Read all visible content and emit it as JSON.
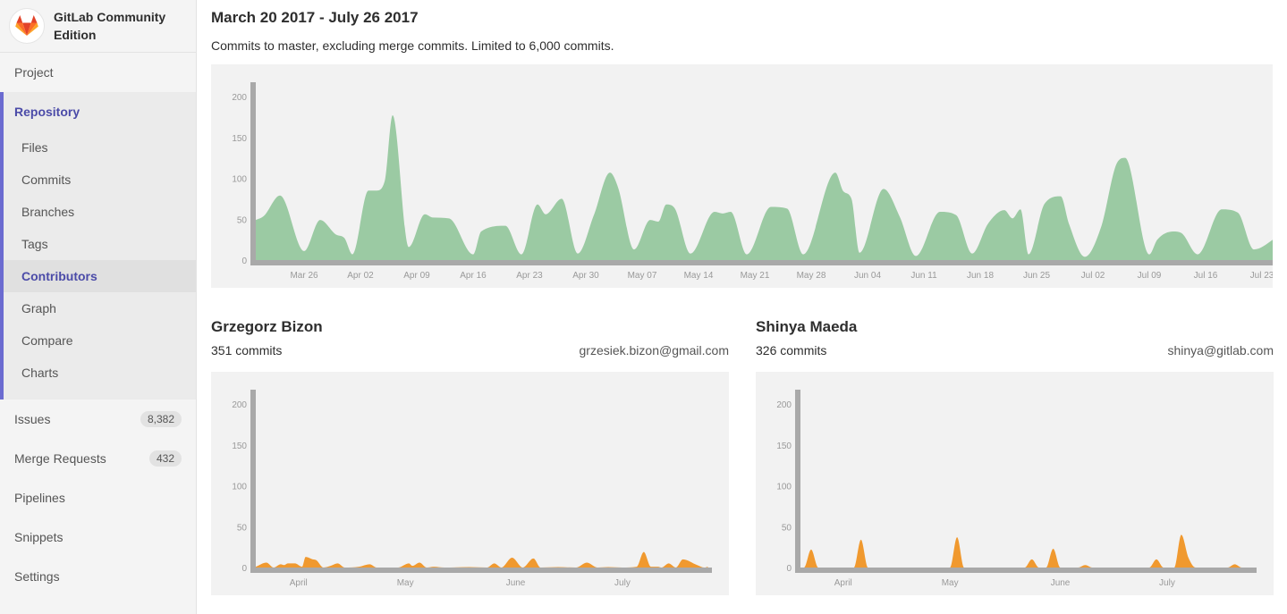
{
  "sidebar": {
    "brand": "GitLab Community Edition",
    "project": "Project",
    "repository": {
      "label": "Repository",
      "items": [
        "Files",
        "Commits",
        "Branches",
        "Tags",
        "Contributors",
        "Graph",
        "Compare",
        "Charts"
      ],
      "active": "Contributors"
    },
    "items": [
      {
        "label": "Issues",
        "badge": "8,382"
      },
      {
        "label": "Merge Requests",
        "badge": "432"
      },
      {
        "label": "Pipelines"
      },
      {
        "label": "Snippets"
      },
      {
        "label": "Settings"
      }
    ],
    "accent": "#6b6bd0"
  },
  "header": {
    "title": "March 20 2017 - July 26 2017",
    "subtitle": "Commits to master, excluding merge commits. Limited to 6,000 commits."
  },
  "contributors": [
    {
      "name": "Grzegorz Bizon",
      "commits": "351 commits",
      "email": "grzesiek.bizon@gmail.com"
    },
    {
      "name": "Shinya Maeda",
      "commits": "326 commits",
      "email": "shinya@gitlab.com"
    }
  ],
  "chart_data": [
    {
      "type": "area",
      "color": "#9bcaa3",
      "xlim": [
        "2017-03-20",
        "2017-07-26"
      ],
      "ylim": [
        0,
        200
      ],
      "yticks": [
        "0",
        "50",
        "100",
        "150",
        "200"
      ],
      "xticks": [
        {
          "date": "2017-03-26",
          "label": "Mar 26"
        },
        {
          "date": "2017-04-02",
          "label": "Apr 02"
        },
        {
          "date": "2017-04-09",
          "label": "Apr 09"
        },
        {
          "date": "2017-04-16",
          "label": "Apr 16"
        },
        {
          "date": "2017-04-23",
          "label": "Apr 23"
        },
        {
          "date": "2017-04-30",
          "label": "Apr 30"
        },
        {
          "date": "2017-05-07",
          "label": "May 07"
        },
        {
          "date": "2017-05-14",
          "label": "May 14"
        },
        {
          "date": "2017-05-21",
          "label": "May 21"
        },
        {
          "date": "2017-05-28",
          "label": "May 28"
        },
        {
          "date": "2017-06-04",
          "label": "Jun 04"
        },
        {
          "date": "2017-06-11",
          "label": "Jun 11"
        },
        {
          "date": "2017-06-18",
          "label": "Jun 18"
        },
        {
          "date": "2017-06-25",
          "label": "Jun 25"
        },
        {
          "date": "2017-07-02",
          "label": "Jul 02"
        },
        {
          "date": "2017-07-09",
          "label": "Jul 09"
        },
        {
          "date": "2017-07-16",
          "label": "Jul 16"
        },
        {
          "date": "2017-07-23",
          "label": "Jul 23"
        }
      ],
      "x": [
        "2017-03-20",
        "2017-03-21",
        "2017-03-23",
        "2017-03-26",
        "2017-03-28",
        "2017-03-30",
        "2017-03-31",
        "2017-04-01",
        "2017-04-03",
        "2017-04-04",
        "2017-04-05",
        "2017-04-06",
        "2017-04-08",
        "2017-04-10",
        "2017-04-11",
        "2017-04-13",
        "2017-04-16",
        "2017-04-17",
        "2017-04-20",
        "2017-04-22",
        "2017-04-24",
        "2017-04-25",
        "2017-04-27",
        "2017-04-29",
        "2017-05-01",
        "2017-05-03",
        "2017-05-04",
        "2017-05-06",
        "2017-05-08",
        "2017-05-09",
        "2017-05-10",
        "2017-05-11",
        "2017-05-13",
        "2017-05-16",
        "2017-05-17",
        "2017-05-18",
        "2017-05-20",
        "2017-05-23",
        "2017-05-25",
        "2017-05-27",
        "2017-05-31",
        "2017-06-01",
        "2017-06-02",
        "2017-06-03",
        "2017-06-06",
        "2017-06-08",
        "2017-06-10",
        "2017-06-13",
        "2017-06-15",
        "2017-06-17",
        "2017-06-19",
        "2017-06-21",
        "2017-06-22",
        "2017-06-23",
        "2017-06-24",
        "2017-06-26",
        "2017-06-28",
        "2017-06-29",
        "2017-07-01",
        "2017-07-03",
        "2017-07-05",
        "2017-07-06",
        "2017-07-09",
        "2017-07-10",
        "2017-07-12",
        "2017-07-13",
        "2017-07-15",
        "2017-07-18",
        "2017-07-20",
        "2017-07-22",
        "2017-07-25"
      ],
      "values": [
        49,
        54,
        79,
        11,
        49,
        31,
        27,
        7,
        85,
        85,
        96,
        177,
        16,
        56,
        52,
        51,
        7,
        35,
        42,
        7,
        68,
        56,
        75,
        8,
        55,
        107,
        89,
        13,
        49,
        47,
        68,
        64,
        8,
        59,
        57,
        59,
        7,
        65,
        63,
        7,
        107,
        84,
        75,
        9,
        87,
        53,
        5,
        59,
        55,
        8,
        45,
        61,
        51,
        62,
        7,
        69,
        78,
        45,
        4,
        40,
        119,
        125,
        7,
        25,
        35,
        33,
        7,
        62,
        58,
        13,
        29
      ]
    },
    {
      "type": "area",
      "color": "#f0992f",
      "xlim": [
        "2017-03-20",
        "2017-07-26"
      ],
      "ylim": [
        0,
        200
      ],
      "yticks": [
        "0",
        "50",
        "100",
        "150",
        "200"
      ],
      "xticks": [
        {
          "date": "2017-04-01",
          "label": "April"
        },
        {
          "date": "2017-05-01",
          "label": "May"
        },
        {
          "date": "2017-06-01",
          "label": "June"
        },
        {
          "date": "2017-07-01",
          "label": "July"
        }
      ],
      "x": [
        "2017-03-20",
        "2017-03-23",
        "2017-03-25",
        "2017-03-27",
        "2017-03-28",
        "2017-03-29",
        "2017-03-31",
        "2017-04-02",
        "2017-04-03",
        "2017-04-05",
        "2017-04-06",
        "2017-04-08",
        "2017-04-10",
        "2017-04-12",
        "2017-04-14",
        "2017-04-18",
        "2017-04-21",
        "2017-04-23",
        "2017-04-29",
        "2017-05-02",
        "2017-05-03",
        "2017-05-05",
        "2017-05-07",
        "2017-05-09",
        "2017-05-12",
        "2017-05-19",
        "2017-05-24",
        "2017-05-26",
        "2017-05-28",
        "2017-05-31",
        "2017-06-03",
        "2017-06-06",
        "2017-06-08",
        "2017-06-13",
        "2017-06-18",
        "2017-06-21",
        "2017-06-24",
        "2017-06-27",
        "2017-07-01",
        "2017-07-05",
        "2017-07-07",
        "2017-07-09",
        "2017-07-11",
        "2017-07-12",
        "2017-07-14",
        "2017-07-16",
        "2017-07-18",
        "2017-07-22",
        "2017-07-24",
        "2017-07-25"
      ],
      "values": [
        1,
        6,
        0,
        4,
        3,
        5,
        5,
        1,
        13,
        10,
        9,
        0,
        2,
        5,
        0,
        1,
        4,
        0,
        0,
        5,
        2,
        6,
        0,
        1,
        0,
        0.5,
        0,
        5,
        0,
        12,
        0,
        11,
        0,
        0.5,
        0,
        6,
        0,
        0.5,
        0,
        1,
        19,
        1,
        1,
        0,
        5,
        0,
        10,
        3,
        0,
        1
      ]
    },
    {
      "type": "area",
      "color": "#f0992f",
      "xlim": [
        "2017-03-20",
        "2017-07-26"
      ],
      "ylim": [
        0,
        200
      ],
      "yticks": [
        "0",
        "50",
        "100",
        "150",
        "200"
      ],
      "xticks": [
        {
          "date": "2017-04-01",
          "label": "April"
        },
        {
          "date": "2017-05-01",
          "label": "May"
        },
        {
          "date": "2017-06-01",
          "label": "June"
        },
        {
          "date": "2017-07-01",
          "label": "July"
        }
      ],
      "x": [
        "2017-03-20",
        "2017-03-21",
        "2017-03-23",
        "2017-03-25",
        "2017-04-04",
        "2017-04-06",
        "2017-04-08",
        "2017-05-01",
        "2017-05-03",
        "2017-05-05",
        "2017-05-22",
        "2017-05-24",
        "2017-05-26",
        "2017-05-28",
        "2017-05-30",
        "2017-06-01",
        "2017-06-06",
        "2017-06-08",
        "2017-06-10",
        "2017-06-26",
        "2017-06-28",
        "2017-06-30",
        "2017-07-03",
        "2017-07-05",
        "2017-07-07",
        "2017-07-09",
        "2017-07-18",
        "2017-07-20",
        "2017-07-22",
        "2017-07-25"
      ],
      "values": [
        0,
        0,
        22,
        0,
        0,
        34,
        0,
        0,
        37,
        0,
        0,
        10,
        0,
        0,
        23,
        0,
        0,
        3,
        0,
        0,
        10,
        0,
        0,
        40,
        12,
        0,
        0,
        4,
        0,
        0
      ]
    }
  ]
}
